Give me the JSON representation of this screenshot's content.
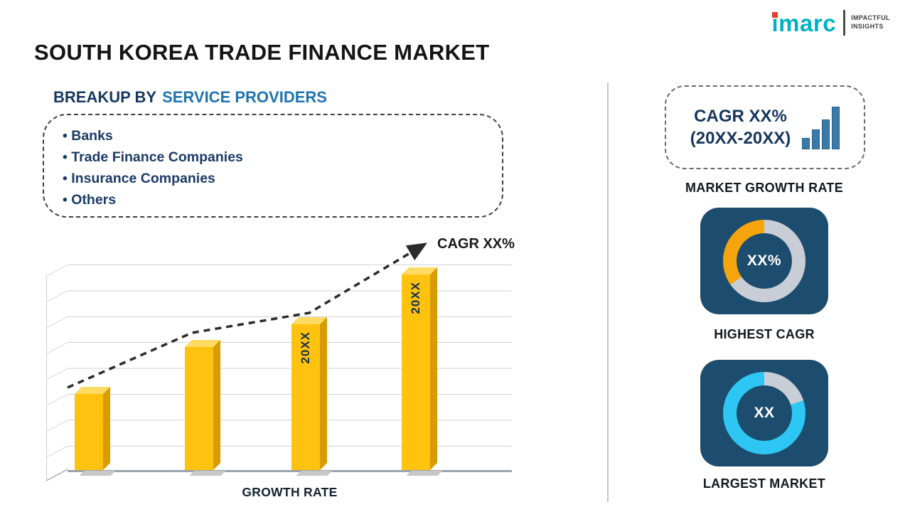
{
  "title": "SOUTH KOREA TRADE FINANCE MARKET",
  "logo": {
    "brand_i": "i",
    "brand_rest": "marc",
    "tagline_line1": "IMPACTFUL",
    "tagline_line2": "INSIGHTS"
  },
  "breakup": {
    "heading_prefix": "BREAKUP BY",
    "heading_highlight": "SERVICE PROVIDERS",
    "items": [
      "Banks",
      "Trade Finance Companies",
      "Insurance Companies",
      "Others"
    ]
  },
  "chart_data": [
    {
      "type": "bar",
      "xlabel": "GROWTH RATE",
      "ylabel": "",
      "categories": [
        "",
        "",
        "20XX",
        "20XX"
      ],
      "bar_labels": [
        "",
        "",
        "20XX",
        "20XX"
      ],
      "values": [
        37,
        60,
        71,
        95
      ],
      "value_unit": "relative-height-percent",
      "bar_color": "#FFC20E",
      "gridlines": true,
      "trend_label": "CAGR XX%",
      "trend_style": "dashed-arrow-ascending"
    },
    {
      "type": "pie",
      "subtype": "donut",
      "label": "HIGHEST CAGR",
      "center_text": "XX%",
      "slices": [
        {
          "name": "highlight",
          "color": "#F5A50B",
          "fraction": 0.35
        },
        {
          "name": "remainder",
          "color": "#C9CED6",
          "fraction": 0.65
        }
      ]
    },
    {
      "type": "pie",
      "subtype": "donut",
      "label": "LARGEST MARKET",
      "center_text": "XX",
      "slices": [
        {
          "name": "highlight",
          "color": "#2EC6F2",
          "fraction": 0.8
        },
        {
          "name": "remainder",
          "color": "#C9CED6",
          "fraction": 0.2
        }
      ]
    }
  ],
  "right_panel": {
    "growth_box": {
      "line1": "CAGR XX%",
      "line2": "(20XX-20XX)"
    },
    "captions": {
      "market_growth_rate": "MARKET GROWTH RATE",
      "highest_cagr": "HIGHEST CAGR",
      "largest_market": "LARGEST MARKET"
    },
    "donut1_value": "XX%",
    "donut2_value": "XX"
  },
  "colors": {
    "navy_tile": "#1D4D6E",
    "bar_yellow": "#FFC20E",
    "accent_orange": "#F5A50B",
    "accent_cyan": "#2EC6F2",
    "heading_navy": "#15395E",
    "heading_blue": "#1E73AE",
    "brand_teal": "#00B2C3",
    "brand_red": "#E53C2E"
  }
}
